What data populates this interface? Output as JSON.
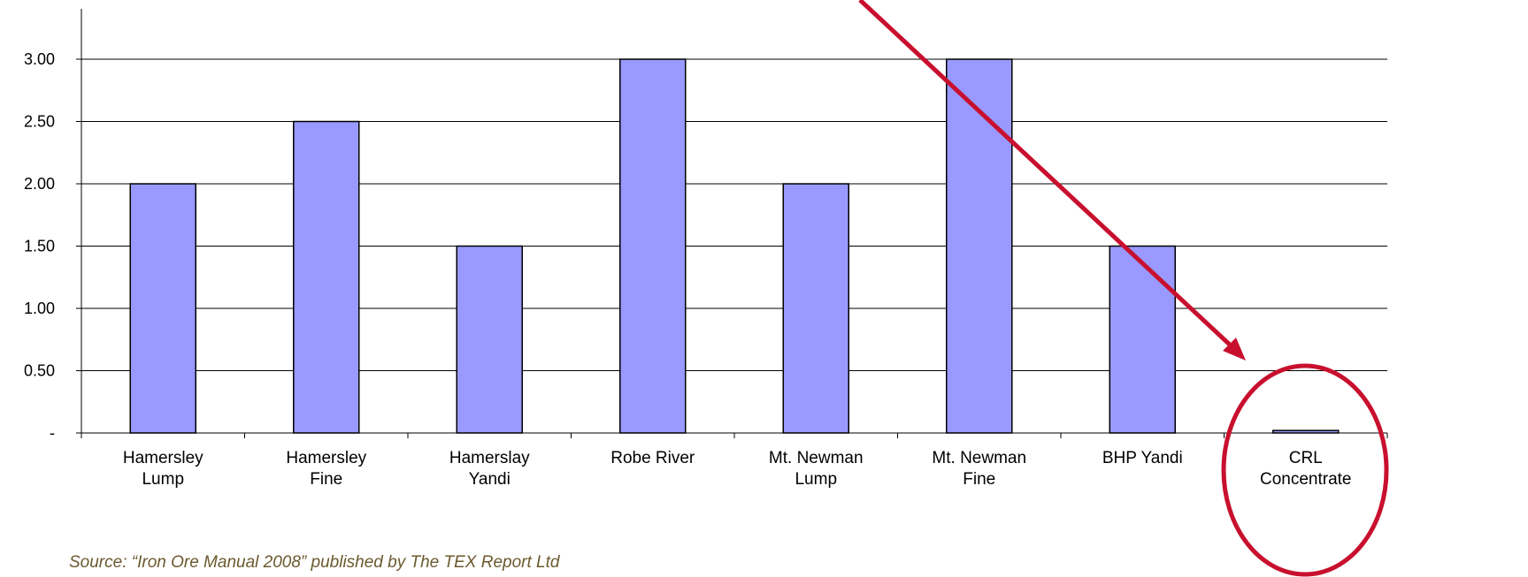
{
  "chart_data": {
    "type": "bar",
    "categories": [
      [
        "Hamersley",
        "Lump"
      ],
      [
        "Hamersley",
        "Fine"
      ],
      [
        "Hamerslay",
        "Yandi"
      ],
      [
        "Robe River"
      ],
      [
        "Mt. Newman",
        "Lump"
      ],
      [
        "Mt. Newman",
        "Fine"
      ],
      [
        "BHP Yandi"
      ],
      [
        "CRL",
        "Concentrate"
      ]
    ],
    "values": [
      2.0,
      2.5,
      1.5,
      3.0,
      2.0,
      3.0,
      1.5,
      0.02
    ],
    "ylim": [
      0,
      3.0
    ],
    "yticks": [
      {
        "value": 0,
        "label": "-"
      },
      {
        "value": 0.5,
        "label": "0.50"
      },
      {
        "value": 1.0,
        "label": "1.00"
      },
      {
        "value": 1.5,
        "label": "1.50"
      },
      {
        "value": 2.0,
        "label": "2.00"
      },
      {
        "value": 2.5,
        "label": "2.50"
      },
      {
        "value": 3.0,
        "label": "3.00"
      }
    ],
    "grid": true,
    "bar_color": "#9999ff",
    "annotations": {
      "arrow_color": "#c8102e",
      "circle_color": "#c8102e",
      "highlight_category": "CRL Concentrate"
    }
  },
  "source": "Source: “Iron Ore Manual 2008” published by The TEX Report Ltd"
}
